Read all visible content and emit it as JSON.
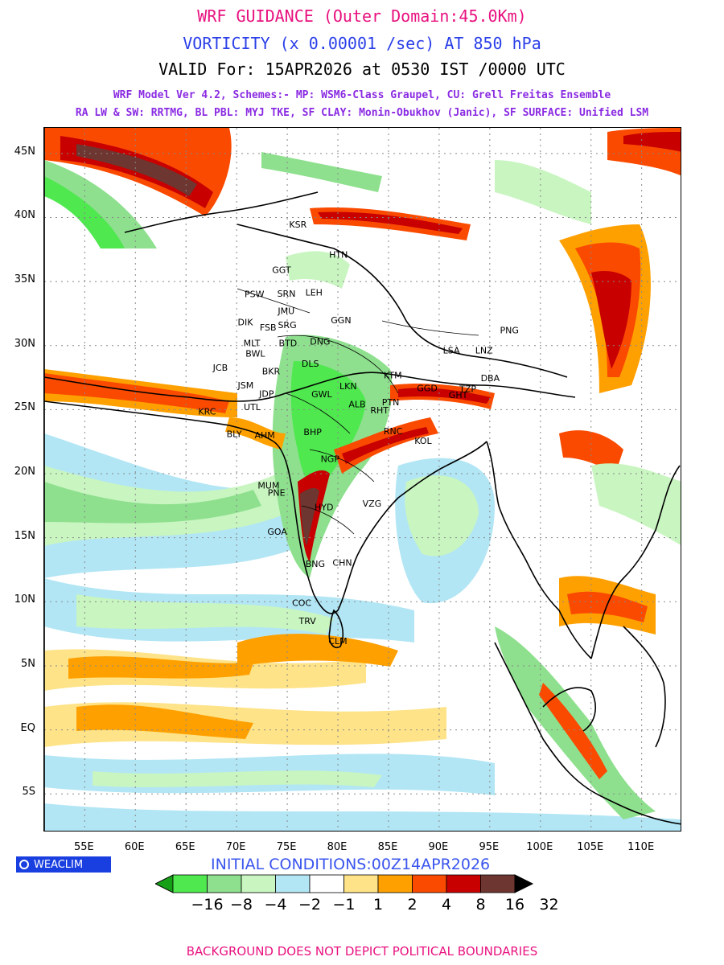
{
  "header": {
    "title": "WRF GUIDANCE (Outer Domain:45.0Km)",
    "field": "VORTICITY (x 0.00001 /sec) AT 850 hPa",
    "valid": "VALID For: 15APR2026 at 0530 IST /0000 UTC",
    "schemes_line1": "WRF Model Ver 4.2, Schemes:- MP: WSM6-Class Graupel, CU: Grell Freitas Ensemble",
    "schemes_line2": "RA LW & SW: RRTMG, BL PBL: MYJ TKE, SF CLAY: Monin-Obukhov (Janic), SF SURFACE: Unified LSM"
  },
  "axes": {
    "lat_labels": [
      "45N",
      "40N",
      "35N",
      "30N",
      "25N",
      "20N",
      "15N",
      "10N",
      "5N",
      "EQ",
      "5S"
    ],
    "lon_labels": [
      "55E",
      "60E",
      "65E",
      "70E",
      "75E",
      "80E",
      "85E",
      "90E",
      "95E",
      "100E",
      "105E",
      "110E"
    ]
  },
  "map_extent": {
    "lon_min": 51,
    "lon_max": 114,
    "lat_min": -8,
    "lat_max": 47
  },
  "cities": [
    {
      "name": "KSR",
      "lon": 75.98,
      "lat": 39.47
    },
    {
      "name": "HTN",
      "lon": 79.93,
      "lat": 37.11
    },
    {
      "name": "GGT",
      "lon": 74.3,
      "lat": 35.92
    },
    {
      "name": "PSW",
      "lon": 71.58,
      "lat": 34.02
    },
    {
      "name": "SRN",
      "lon": 74.8,
      "lat": 34.08
    },
    {
      "name": "LEH",
      "lon": 77.58,
      "lat": 34.16
    },
    {
      "name": "JMU",
      "lon": 74.86,
      "lat": 32.73
    },
    {
      "name": "GGN",
      "lon": 80.1,
      "lat": 32.0
    },
    {
      "name": "DIK",
      "lon": 70.9,
      "lat": 31.83
    },
    {
      "name": "SRG",
      "lon": 74.87,
      "lat": 31.63
    },
    {
      "name": "FSB",
      "lon": 73.08,
      "lat": 31.42
    },
    {
      "name": "MLT",
      "lon": 71.47,
      "lat": 30.2
    },
    {
      "name": "BTD",
      "lon": 74.95,
      "lat": 30.21
    },
    {
      "name": "DNG",
      "lon": 78.03,
      "lat": 30.32
    },
    {
      "name": "BWL",
      "lon": 71.68,
      "lat": 29.4
    },
    {
      "name": "DLS",
      "lon": 77.21,
      "lat": 28.61
    },
    {
      "name": "JCB",
      "lon": 68.45,
      "lat": 28.28
    },
    {
      "name": "BKR",
      "lon": 73.3,
      "lat": 28.02
    },
    {
      "name": "LSA",
      "lon": 91.17,
      "lat": 29.65
    },
    {
      "name": "LNZ",
      "lon": 94.36,
      "lat": 29.65
    },
    {
      "name": "PNG",
      "lon": 96.8,
      "lat": 31.2
    },
    {
      "name": "JSM",
      "lon": 70.9,
      "lat": 26.92
    },
    {
      "name": "LKN",
      "lon": 80.95,
      "lat": 26.85
    },
    {
      "name": "KTM",
      "lon": 85.32,
      "lat": 27.7
    },
    {
      "name": "GGD",
      "lon": 88.6,
      "lat": 26.7
    },
    {
      "name": "TZP",
      "lon": 92.8,
      "lat": 26.63
    },
    {
      "name": "DBA",
      "lon": 94.9,
      "lat": 27.48
    },
    {
      "name": "JDP",
      "lon": 73.02,
      "lat": 26.24
    },
    {
      "name": "GWL",
      "lon": 78.18,
      "lat": 26.22
    },
    {
      "name": "GHT",
      "lon": 91.74,
      "lat": 26.14
    },
    {
      "name": "UTL",
      "lon": 71.5,
      "lat": 25.2
    },
    {
      "name": "ALB",
      "lon": 81.85,
      "lat": 25.43
    },
    {
      "name": "PTN",
      "lon": 85.14,
      "lat": 25.59
    },
    {
      "name": "RHT",
      "lon": 84.0,
      "lat": 24.95
    },
    {
      "name": "KRC",
      "lon": 67.0,
      "lat": 24.86
    },
    {
      "name": "BHP",
      "lon": 77.41,
      "lat": 23.26
    },
    {
      "name": "RNC",
      "lon": 85.31,
      "lat": 23.34
    },
    {
      "name": "AHM",
      "lon": 72.57,
      "lat": 23.02
    },
    {
      "name": "BLY",
      "lon": 69.8,
      "lat": 23.1
    },
    {
      "name": "KOL",
      "lon": 88.36,
      "lat": 22.57
    },
    {
      "name": "NGP",
      "lon": 79.09,
      "lat": 21.15
    },
    {
      "name": "MUM",
      "lon": 72.88,
      "lat": 19.08
    },
    {
      "name": "PNE",
      "lon": 73.86,
      "lat": 18.52
    },
    {
      "name": "HYD",
      "lon": 78.49,
      "lat": 17.39
    },
    {
      "name": "VZG",
      "lon": 83.22,
      "lat": 17.69
    },
    {
      "name": "GOA",
      "lon": 73.83,
      "lat": 15.49
    },
    {
      "name": "CHN",
      "lon": 80.27,
      "lat": 13.08
    },
    {
      "name": "BNG",
      "lon": 77.59,
      "lat": 12.97
    },
    {
      "name": "COC",
      "lon": 76.27,
      "lat": 9.93
    },
    {
      "name": "TRV",
      "lon": 76.94,
      "lat": 8.52
    },
    {
      "name": "CLM",
      "lon": 79.86,
      "lat": 6.93
    }
  ],
  "legend": {
    "brand": "WEACLIM",
    "init": "INITIAL CONDITIONS:00Z14APR2026",
    "labels": [
      "-16",
      "-8",
      "-4",
      "-2",
      "-1",
      "1",
      "2",
      "4",
      "8",
      "16",
      "32"
    ],
    "colors": [
      "#16a018",
      "#4fe84f",
      "#8ee08e",
      "#c8f5c0",
      "#b2e6f5",
      "#ffffff",
      "#fee388",
      "#fea000",
      "#fa4a00",
      "#c80000",
      "#6e3630",
      "#000000"
    ]
  },
  "footer": "BACKGROUND DOES NOT DEPICT POLITICAL BOUNDARIES"
}
